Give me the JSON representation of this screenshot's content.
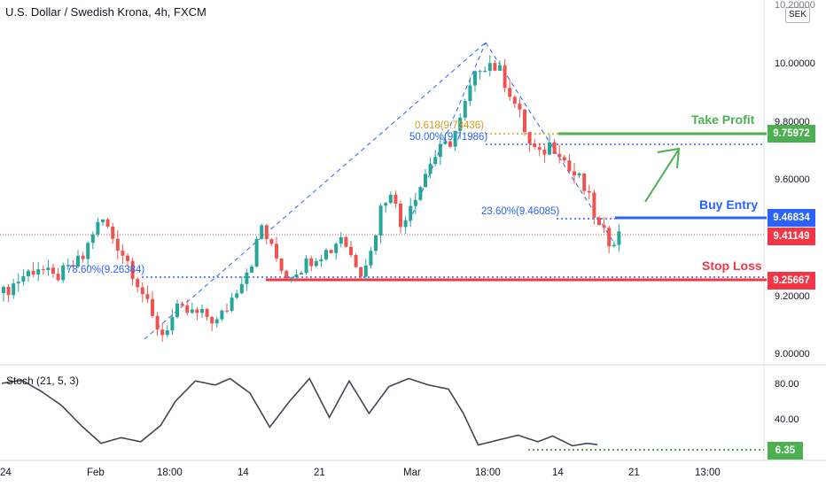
{
  "header": {
    "title": "U.S. Dollar / Swedish Krona, 4h, FXCM",
    "currency": "SEK"
  },
  "price_axis": {
    "top_label": "10.20000",
    "labels": [
      "10.00000",
      "9.80000",
      "9.60000",
      "9.20000",
      "9.00000"
    ]
  },
  "price_tags": {
    "take_profit": "9.75972",
    "buy_entry": "9.46834",
    "current": "9.41149",
    "stop_loss": "9.25667"
  },
  "levels": {
    "take_profit": "Take Profit",
    "buy_entry": "Buy Entry",
    "stop_loss": "Stop Loss"
  },
  "fib_labels": {
    "f618": "0.618(9.73436)",
    "f50": "50.00%(9.71986)",
    "f236": "23.60%(9.46085)",
    "f786": "78.60%(9.26384)"
  },
  "stoch": {
    "title": "Stoch (21, 5, 3)",
    "axis_labels": [
      "80.00",
      "40.00"
    ],
    "value": "6.35"
  },
  "time_axis": [
    "24",
    "Feb",
    "18:00",
    "14",
    "21",
    "Mar",
    "18:00",
    "14",
    "21",
    "13:00"
  ],
  "colors": {
    "take_profit": "#4caf50",
    "buy_entry": "#2962ff",
    "stop_loss": "#f23645",
    "candle_up": "#26a69a",
    "candle_down": "#ef5350",
    "fib_gold": "#d4a017",
    "stoch_line": "#434651"
  },
  "chart_data": {
    "type": "candlestick",
    "symbol": "USD/SEK",
    "timeframe": "4h",
    "source": "FXCM",
    "ylim": [
      9.0,
      10.2
    ],
    "close_path": [
      [
        0,
        9.21
      ],
      [
        4,
        9.27
      ],
      [
        7,
        9.3
      ],
      [
        10,
        9.26
      ],
      [
        13,
        9.29
      ],
      [
        16,
        9.33
      ],
      [
        18,
        9.42
      ],
      [
        20,
        9.46
      ],
      [
        22,
        9.4
      ],
      [
        25,
        9.32
      ],
      [
        28,
        9.21
      ],
      [
        30,
        9.12
      ],
      [
        32,
        9.07
      ],
      [
        35,
        9.15
      ],
      [
        38,
        9.14
      ],
      [
        41,
        9.13
      ],
      [
        43,
        9.11
      ],
      [
        45,
        9.16
      ],
      [
        48,
        9.26
      ],
      [
        50,
        9.32
      ],
      [
        52,
        9.44
      ],
      [
        54,
        9.36
      ],
      [
        57,
        9.27
      ],
      [
        60,
        9.3
      ],
      [
        63,
        9.34
      ],
      [
        66,
        9.36
      ],
      [
        68,
        9.41
      ],
      [
        70,
        9.34
      ],
      [
        72,
        9.29
      ],
      [
        74,
        9.35
      ],
      [
        76,
        9.5
      ],
      [
        78,
        9.57
      ],
      [
        80,
        9.44
      ],
      [
        82,
        9.52
      ],
      [
        84,
        9.58
      ],
      [
        86,
        9.66
      ],
      [
        88,
        9.7
      ],
      [
        90,
        9.73
      ],
      [
        92,
        9.8
      ],
      [
        94,
        9.91
      ],
      [
        96,
        9.99
      ],
      [
        98,
        10.0
      ],
      [
        100,
        9.97
      ],
      [
        102,
        9.9
      ],
      [
        104,
        9.82
      ],
      [
        106,
        9.72
      ],
      [
        108,
        9.68
      ],
      [
        110,
        9.72
      ],
      [
        112,
        9.7
      ],
      [
        114,
        9.63
      ],
      [
        116,
        9.6
      ],
      [
        118,
        9.53
      ],
      [
        120,
        9.43
      ],
      [
        122,
        9.39
      ],
      [
        124,
        9.41
      ]
    ],
    "stoch_path": [
      [
        0,
        82
      ],
      [
        4,
        86
      ],
      [
        8,
        72
      ],
      [
        12,
        55
      ],
      [
        16,
        30
      ],
      [
        20,
        8
      ],
      [
        24,
        15
      ],
      [
        28,
        10
      ],
      [
        32,
        30
      ],
      [
        35,
        60
      ],
      [
        39,
        85
      ],
      [
        43,
        80
      ],
      [
        46,
        88
      ],
      [
        50,
        70
      ],
      [
        54,
        28
      ],
      [
        58,
        60
      ],
      [
        62,
        88
      ],
      [
        66,
        40
      ],
      [
        70,
        85
      ],
      [
        74,
        45
      ],
      [
        78,
        78
      ],
      [
        82,
        88
      ],
      [
        86,
        80
      ],
      [
        90,
        75
      ],
      [
        93,
        45
      ],
      [
        96,
        6
      ],
      [
        100,
        12
      ],
      [
        104,
        18
      ],
      [
        108,
        10
      ],
      [
        111,
        17
      ],
      [
        115,
        5
      ],
      [
        118,
        8
      ],
      [
        120,
        6.35
      ]
    ]
  }
}
